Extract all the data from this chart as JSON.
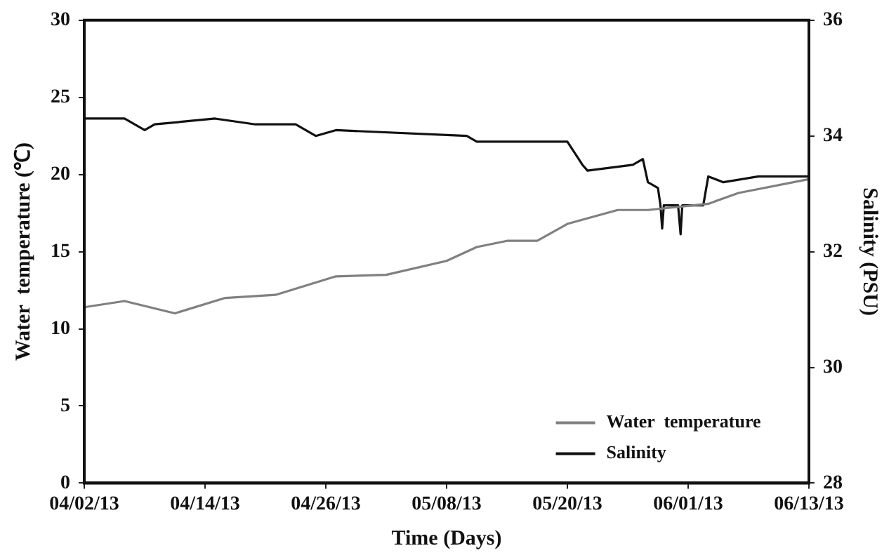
{
  "chart_data": {
    "type": "line",
    "xlabel": "Time (Days)",
    "ylabel": "Water  temperature (℃)",
    "y2label": "Salinity (PSU)",
    "xlim": [
      "--04-02",
      "--06-13"
    ],
    "xticks": [
      {
        "value": "--04-02",
        "label": "04/02/13"
      },
      {
        "value": "--04-14",
        "label": "04/14/13"
      },
      {
        "value": "--04-26",
        "label": "04/26/13"
      },
      {
        "value": "--05-08",
        "label": "05/08/13"
      },
      {
        "value": "--05-20",
        "label": "05/20/13"
      },
      {
        "value": "--06-01",
        "label": "06/01/13"
      },
      {
        "value": "--06-13",
        "label": "06/13/13"
      }
    ],
    "ylim": [
      0,
      30
    ],
    "yticks": [
      0,
      5,
      10,
      15,
      20,
      25,
      30
    ],
    "y2lim": [
      28,
      36
    ],
    "y2ticks": [
      28,
      30,
      32,
      34,
      36
    ],
    "grid": false,
    "legend": "bottom right",
    "marker": "none",
    "series": [
      {
        "name": "Water  temperature",
        "color": "#808080",
        "x": [
          "--04-02",
          "--04-06",
          "--04-11",
          "--04-16",
          "--04-21",
          "--04-24",
          "--04-27",
          "--05-02",
          "--05-08",
          "--05-11",
          "--05-14",
          "--05-17",
          "--05-20",
          "--05-25",
          "--05-28",
          "--06-03",
          "--06-06",
          "--06-13"
        ],
        "values": [
          11.4,
          11.8,
          11.0,
          12.0,
          12.2,
          12.8,
          13.4,
          13.5,
          14.4,
          15.3,
          15.7,
          15.7,
          16.8,
          17.7,
          17.7,
          18.1,
          18.8,
          19.7
        ]
      },
      {
        "name": "Salinity",
        "color": "#111111",
        "axis": "y2",
        "x": [
          "--04-02",
          "--04-06",
          "--04-08",
          "--04-09",
          "--04-15",
          "--04-19",
          "--04-23",
          "--04-25",
          "--04-27",
          "--05-10",
          "--05-11",
          "--05-14",
          "--05-17",
          "--05-20",
          "--05-21T12:00",
          "--05-22",
          "--05-26T12:00",
          "--05-27T12:00",
          "--05-28",
          "--05-29",
          "--05-29T06:00",
          "--05-29T10:00",
          "--05-29T14:00",
          "--05-31",
          "--05-31T06:00",
          "--05-31T10:00",
          "--06-02T12:00",
          "--06-03",
          "--06-04T12:00",
          "--06-08",
          "--06-13"
        ],
        "values": [
          34.3,
          34.3,
          34.1,
          34.2,
          34.3,
          34.2,
          34.2,
          34.0,
          34.1,
          34.0,
          33.9,
          33.9,
          33.9,
          33.9,
          33.5,
          33.4,
          33.5,
          33.6,
          33.2,
          33.1,
          32.8,
          32.4,
          32.8,
          32.8,
          32.3,
          32.8,
          32.8,
          33.3,
          33.2,
          33.3,
          33.3
        ]
      }
    ]
  }
}
